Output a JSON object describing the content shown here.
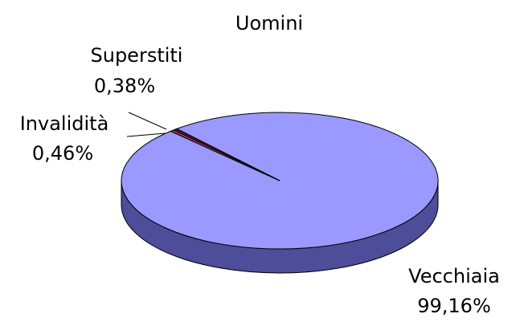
{
  "chart_data": {
    "type": "pie",
    "title": "Uomini",
    "categories": [
      "Vecchiaia",
      "Invalidità",
      "Superstiti"
    ],
    "values": [
      99.16,
      0.46,
      0.38
    ],
    "value_labels": [
      "99,16%",
      "0,46%",
      "0,38%"
    ],
    "colors": [
      "#9999ff",
      "#993366",
      "#5a1a33"
    ],
    "side_colors": [
      "#4d4d99",
      "#4d1a33",
      "#2d0d1a"
    ]
  }
}
